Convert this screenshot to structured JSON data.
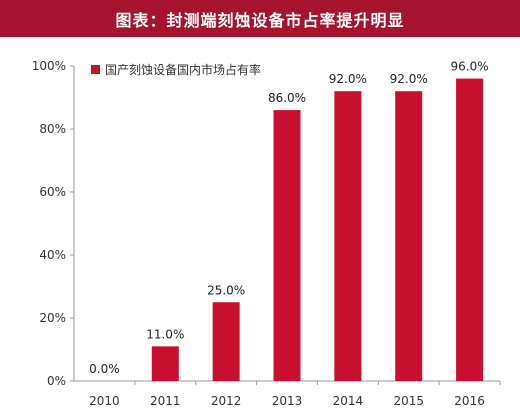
{
  "header": {
    "title": "图表：封测端刻蚀设备市占率提升明显"
  },
  "colors": {
    "header_bg": "#a6132c",
    "bar": "#c8102e",
    "axis": "#9a9a9a"
  },
  "chart_data": {
    "type": "bar",
    "title": "图表：封测端刻蚀设备市占率提升明显",
    "categories": [
      "2010",
      "2011",
      "2012",
      "2013",
      "2014",
      "2015",
      "2016"
    ],
    "series": [
      {
        "name": "国产刻蚀设备国内市场占有率",
        "values": [
          0.0,
          11.0,
          25.0,
          86.0,
          92.0,
          92.0,
          96.0
        ],
        "data_labels": [
          "0.0%",
          "11.0%",
          "25.0%",
          "86.0%",
          "92.0%",
          "92.0%",
          "96.0%"
        ]
      }
    ],
    "y_ticks": [
      0,
      20,
      40,
      60,
      80,
      100
    ],
    "y_tick_labels": [
      "0%",
      "20%",
      "40%",
      "60%",
      "80%",
      "100%"
    ],
    "ylim": [
      0,
      100
    ],
    "xlabel": "",
    "ylabel": "",
    "grid": false,
    "legend": "top-left"
  }
}
